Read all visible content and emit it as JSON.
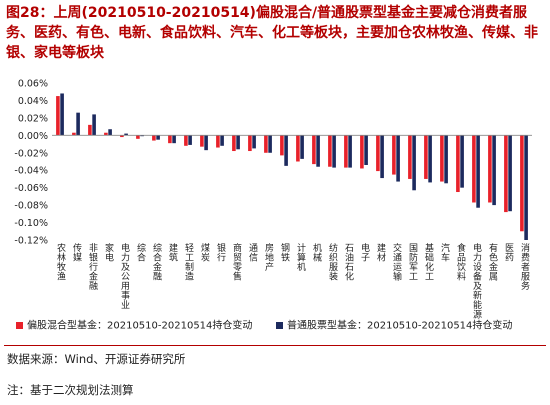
{
  "title": "图28：上周(20210510-20210514)偏股混合/普通股票型基金主要减仓消费者服务、医药、有色、电新、食品饮料、汽车、化工等板块，主要加仓农林牧渔、传媒、非银、家电等板块",
  "footer": {
    "source": "数据来源：Wind、开源证券研究所",
    "note": "注：基于二次规划法测算"
  },
  "colors": {
    "series1": "#e8212a",
    "series2": "#1c2a5e"
  },
  "chart_data": {
    "type": "bar",
    "ylim": [
      -0.12,
      0.06
    ],
    "yticks": [
      0.06,
      0.04,
      0.02,
      0.0,
      -0.02,
      -0.04,
      -0.06,
      -0.08,
      -0.1,
      -0.12
    ],
    "ytick_labels": [
      "0.06%",
      "0.04%",
      "0.02%",
      "0.00%",
      "-0.02%",
      "-0.04%",
      "-0.06%",
      "-0.08%",
      "-0.10%",
      "-0.12%"
    ],
    "categories": [
      "农林牧渔",
      "传媒",
      "非银行金融",
      "家电",
      "电力及公用事业",
      "综合",
      "综合金融",
      "建筑",
      "轻工制造",
      "煤炭",
      "银行",
      "商贸零售",
      "通信",
      "房地产",
      "钢铁",
      "计算机",
      "机械",
      "纺织服装",
      "石油石化",
      "电子",
      "建材",
      "交通运输",
      "国防军工",
      "基础化工",
      "汽车",
      "食品饮料",
      "电力设备及新能源",
      "有色金属",
      "医药",
      "消费者服务"
    ],
    "series": [
      {
        "name": "偏股混合型基金：20210510-20210514持仓变动",
        "values": [
          0.045,
          0.003,
          0.012,
          0.003,
          -0.002,
          -0.004,
          -0.006,
          -0.009,
          -0.012,
          -0.013,
          -0.014,
          -0.018,
          -0.018,
          -0.02,
          -0.023,
          -0.03,
          -0.033,
          -0.036,
          -0.037,
          -0.038,
          -0.041,
          -0.045,
          -0.05,
          -0.05,
          -0.053,
          -0.065,
          -0.077,
          -0.077,
          -0.088,
          -0.11
        ]
      },
      {
        "name": "普通股票型基金：20210510-20210514持仓变动",
        "values": [
          0.048,
          0.026,
          0.024,
          0.007,
          0.002,
          -0.001,
          -0.005,
          -0.009,
          -0.011,
          -0.017,
          -0.012,
          -0.016,
          -0.015,
          -0.02,
          -0.035,
          -0.027,
          -0.036,
          -0.037,
          -0.037,
          -0.034,
          -0.049,
          -0.053,
          -0.063,
          -0.054,
          -0.055,
          -0.06,
          -0.083,
          -0.08,
          -0.087,
          -0.12
        ]
      }
    ],
    "legend_position": "bottom",
    "grid": false
  }
}
